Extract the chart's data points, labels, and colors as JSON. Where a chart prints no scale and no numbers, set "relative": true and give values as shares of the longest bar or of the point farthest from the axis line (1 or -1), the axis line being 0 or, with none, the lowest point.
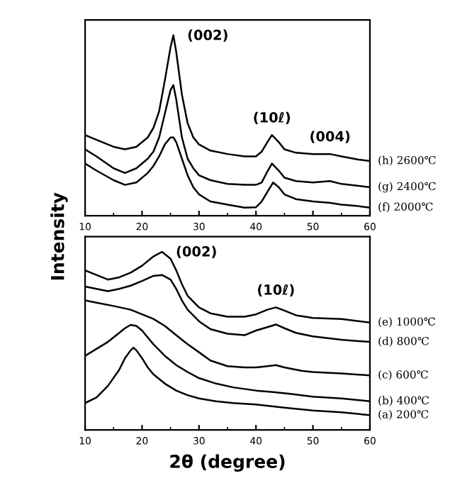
{
  "chart_data": [
    {
      "type": "line",
      "relative": true,
      "ylabel": "Intensity",
      "xlim": [
        10,
        60
      ],
      "xticks": [
        10,
        20,
        30,
        40,
        50,
        60
      ],
      "tick_labels": "x",
      "grid": false,
      "legend": false,
      "annotations": [
        {
          "text": "(002)",
          "x": 25.5,
          "y": 1.0
        },
        {
          "text": "(10ℓ)",
          "x": 42.8,
          "y": 0.447
        },
        {
          "text": "(004)",
          "x": 53,
          "y": 0.342
        }
      ],
      "series": [
        {
          "name": "(h) 2600℃",
          "color": "#000000",
          "x": [
            10,
            12,
            15,
            17,
            19,
            21,
            22,
            23,
            24,
            25,
            25.5,
            26,
            27,
            28,
            29,
            30,
            32,
            35,
            38,
            40,
            41,
            42,
            42.8,
            44,
            45,
            47,
            50,
            53,
            55,
            58,
            60
          ],
          "values": [
            0.447,
            0.421,
            0.382,
            0.368,
            0.382,
            0.434,
            0.487,
            0.579,
            0.75,
            0.934,
            1.0,
            0.908,
            0.671,
            0.513,
            0.434,
            0.395,
            0.361,
            0.342,
            0.329,
            0.329,
            0.355,
            0.408,
            0.447,
            0.408,
            0.368,
            0.349,
            0.342,
            0.342,
            0.329,
            0.311,
            0.303
          ]
        },
        {
          "name": "(g) 2400℃",
          "color": "#000000",
          "x": [
            10,
            12,
            15,
            17,
            19,
            21,
            22,
            23,
            24,
            25,
            25.5,
            26,
            27,
            28,
            29,
            30,
            32,
            35,
            38,
            40,
            41,
            42,
            42.8,
            44,
            45,
            47,
            50,
            53,
            55,
            58,
            60
          ],
          "values": [
            0.368,
            0.329,
            0.263,
            0.237,
            0.263,
            0.316,
            0.355,
            0.434,
            0.566,
            0.697,
            0.724,
            0.645,
            0.434,
            0.316,
            0.263,
            0.224,
            0.197,
            0.176,
            0.171,
            0.171,
            0.184,
            0.245,
            0.289,
            0.25,
            0.211,
            0.192,
            0.184,
            0.192,
            0.176,
            0.166,
            0.158
          ]
        },
        {
          "name": "(f) 2000℃",
          "color": "#000000",
          "x": [
            10,
            12,
            15,
            17,
            19,
            21,
            22,
            23,
            24,
            25,
            25.5,
            26,
            27,
            28,
            29,
            30,
            32,
            35,
            38,
            40,
            41,
            42,
            43,
            44,
            45,
            47,
            50,
            53,
            55,
            58,
            60
          ],
          "values": [
            0.289,
            0.25,
            0.197,
            0.171,
            0.184,
            0.237,
            0.276,
            0.329,
            0.395,
            0.434,
            0.434,
            0.408,
            0.316,
            0.224,
            0.158,
            0.118,
            0.079,
            0.061,
            0.045,
            0.047,
            0.079,
            0.132,
            0.184,
            0.158,
            0.118,
            0.092,
            0.079,
            0.071,
            0.061,
            0.053,
            0.045
          ]
        }
      ]
    },
    {
      "type": "line",
      "relative": true,
      "xlabel": "2θ (degree)",
      "xlim": [
        10,
        60
      ],
      "xticks": [
        10,
        20,
        30,
        40,
        50,
        60
      ],
      "tick_labels": "x",
      "grid": false,
      "legend": false,
      "annotations": [
        {
          "text": "(002)",
          "x": 23.5,
          "y": 1.0
        },
        {
          "text": "(10ℓ)",
          "x": 43.5,
          "y": 0.688
        }
      ],
      "series": [
        {
          "name": "(e) 1000℃",
          "color": "#000000",
          "x": [
            10,
            12,
            14,
            16,
            18,
            20,
            22,
            23.5,
            25,
            26,
            27,
            28,
            30,
            32,
            35,
            38,
            40,
            42,
            43.5,
            45,
            47,
            50,
            55,
            60
          ],
          "values": [
            0.896,
            0.87,
            0.844,
            0.857,
            0.883,
            0.922,
            0.974,
            1.0,
            0.961,
            0.896,
            0.818,
            0.753,
            0.688,
            0.655,
            0.636,
            0.636,
            0.649,
            0.675,
            0.688,
            0.67,
            0.644,
            0.629,
            0.623,
            0.603
          ]
        },
        {
          "name": "(d) 800℃",
          "color": "#000000",
          "x": [
            10,
            12,
            14,
            16,
            18,
            20,
            22,
            23.5,
            25,
            26,
            27,
            28,
            30,
            32,
            35,
            38,
            40,
            42,
            43.5,
            45,
            47,
            50,
            55,
            60
          ],
          "values": [
            0.805,
            0.792,
            0.779,
            0.792,
            0.81,
            0.836,
            0.865,
            0.87,
            0.844,
            0.792,
            0.727,
            0.675,
            0.61,
            0.566,
            0.54,
            0.532,
            0.558,
            0.577,
            0.592,
            0.571,
            0.545,
            0.525,
            0.506,
            0.494
          ]
        },
        {
          "name": "(c) 600℃",
          "color": "#000000",
          "x": [
            10,
            12,
            15,
            18,
            20,
            22,
            24,
            26,
            28,
            30,
            32,
            35,
            38,
            40,
            42,
            43.5,
            45,
            48,
            50,
            55,
            60
          ],
          "values": [
            0.727,
            0.714,
            0.696,
            0.675,
            0.649,
            0.623,
            0.584,
            0.532,
            0.481,
            0.436,
            0.39,
            0.358,
            0.351,
            0.351,
            0.358,
            0.364,
            0.351,
            0.332,
            0.325,
            0.317,
            0.306
          ]
        },
        {
          "name": "(b) 400℃",
          "color": "#000000",
          "x": [
            10,
            12,
            14,
            16,
            17,
            18,
            19,
            20,
            21,
            22,
            24,
            26,
            28,
            30,
            33,
            36,
            40,
            43,
            46,
            50,
            55,
            60
          ],
          "values": [
            0.416,
            0.455,
            0.494,
            0.545,
            0.571,
            0.59,
            0.584,
            0.558,
            0.519,
            0.481,
            0.416,
            0.364,
            0.325,
            0.291,
            0.26,
            0.239,
            0.221,
            0.213,
            0.203,
            0.187,
            0.177,
            0.161
          ]
        },
        {
          "name": "(a) 200℃",
          "color": "#000000",
          "x": [
            10,
            12,
            14,
            16,
            17,
            18,
            18.5,
            19,
            20,
            21,
            22,
            24,
            26,
            28,
            30,
            33,
            36,
            40,
            45,
            50,
            55,
            60
          ],
          "values": [
            0.151,
            0.182,
            0.247,
            0.338,
            0.403,
            0.447,
            0.462,
            0.447,
            0.403,
            0.351,
            0.312,
            0.26,
            0.221,
            0.195,
            0.177,
            0.161,
            0.151,
            0.143,
            0.125,
            0.109,
            0.099,
            0.083
          ]
        }
      ]
    }
  ]
}
